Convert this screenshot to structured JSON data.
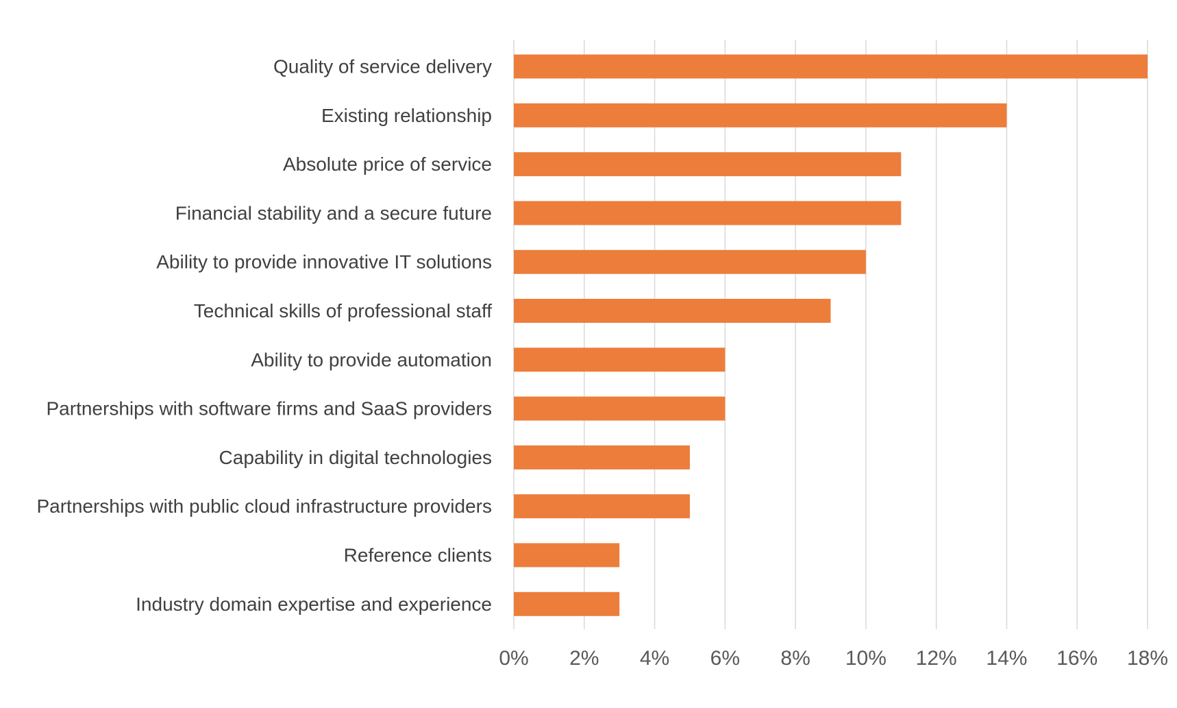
{
  "chart_data": {
    "type": "bar",
    "orientation": "horizontal",
    "title": "",
    "xlabel": "",
    "ylabel": "",
    "categories": [
      "Quality of service delivery",
      "Existing relationship",
      "Absolute price of service",
      "Financial stability and a secure future",
      "Ability to provide innovative IT solutions",
      "Technical skills of professional staff",
      "Ability to provide automation",
      "Partnerships with software firms and SaaS providers",
      "Capability in digital technologies",
      "Partnerships with public cloud infrastructure providers",
      "Reference clients",
      "Industry domain expertise and experience"
    ],
    "values": [
      18,
      14,
      11,
      11,
      10,
      9,
      6,
      6,
      5,
      5,
      3,
      3
    ],
    "xlim": [
      0,
      18
    ],
    "xticks": [
      0,
      2,
      4,
      6,
      8,
      10,
      12,
      14,
      16,
      18
    ],
    "tick_labels": [
      "0%",
      "2%",
      "4%",
      "6%",
      "8%",
      "10%",
      "12%",
      "14%",
      "16%",
      "18%"
    ],
    "grid": "vertical",
    "legend": "none",
    "bar_color": "#ED7D3B"
  }
}
